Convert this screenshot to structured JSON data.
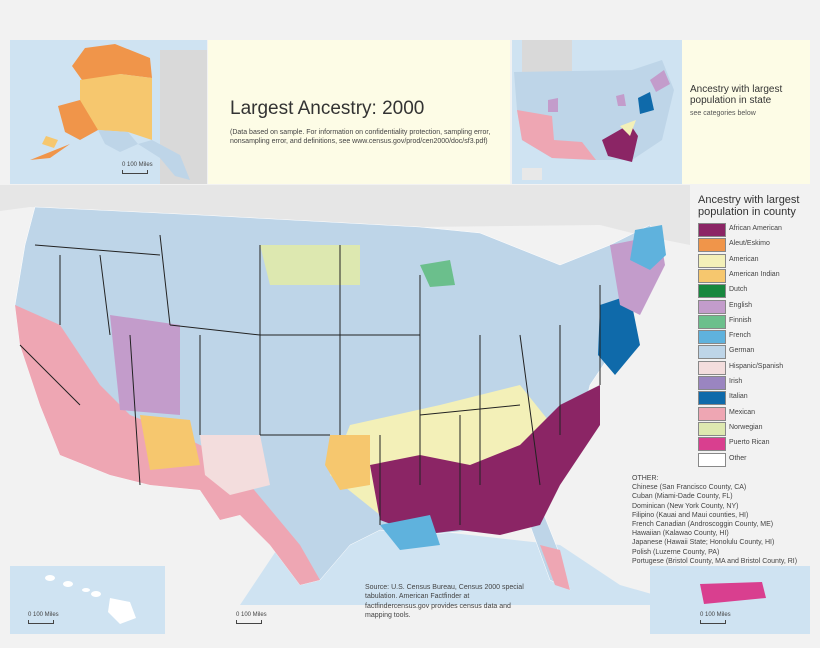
{
  "title": "Largest Ancestry: 2000",
  "note": "(Data based on sample. For information on confidentiality protection, sampling error, nonsampling error, and definitions, see www.census.gov/prod/cen2000/doc/sf3.pdf)",
  "state_inset": {
    "title": "Ancestry with largest population in state",
    "subtitle": "see categories below"
  },
  "legend": {
    "title": "Ancestry with largest population in county",
    "items": [
      {
        "label": "African American",
        "color": "#8b2565"
      },
      {
        "label": "Aleut/Eskimo",
        "color": "#f0954a"
      },
      {
        "label": "American",
        "color": "#f3f0b8"
      },
      {
        "label": "American Indian",
        "color": "#f6c76e"
      },
      {
        "label": "Dutch",
        "color": "#17873e"
      },
      {
        "label": "English",
        "color": "#c39ccb"
      },
      {
        "label": "Finnish",
        "color": "#6bbf8c"
      },
      {
        "label": "French",
        "color": "#5fb2dd"
      },
      {
        "label": "German",
        "color": "#bed5e8"
      },
      {
        "label": "Hispanic/Spanish",
        "color": "#f3dddd"
      },
      {
        "label": "Irish",
        "color": "#9a85c0"
      },
      {
        "label": "Italian",
        "color": "#0f6aaa"
      },
      {
        "label": "Mexican",
        "color": "#eea6b3"
      },
      {
        "label": "Norwegian",
        "color": "#dde8b0"
      },
      {
        "label": "Puerto Rican",
        "color": "#d93f8f"
      },
      {
        "label": "Other",
        "color": "#ffffff"
      }
    ]
  },
  "other": {
    "heading": "OTHER:",
    "lines": [
      "Chinese (San Francisco County, CA)",
      "Cuban (Miami-Dade County, FL)",
      "Dominican (New York County, NY)",
      "Filipino (Kauai and Maui counties, HI)",
      "French Canadian (Androscoggin County, ME)",
      "Hawaiian (Kalawao County, HI)",
      "Japanese (Hawaii State; Honolulu County, HI)",
      "Polish (Luzerne County, PA)",
      "Portugese (Bristol County, MA and Bristol County, RI)"
    ]
  },
  "source": "Source: U.S. Census Bureau, Census 2000 special tabulation. American Factfinder at factfindercensus.gov provides census data and mapping tools.",
  "scales": {
    "alaska": "0     100 Miles",
    "hawaii": "0        100 Miles",
    "main": "0        100 Miles",
    "puerto_rico": "0        100 Miles"
  }
}
